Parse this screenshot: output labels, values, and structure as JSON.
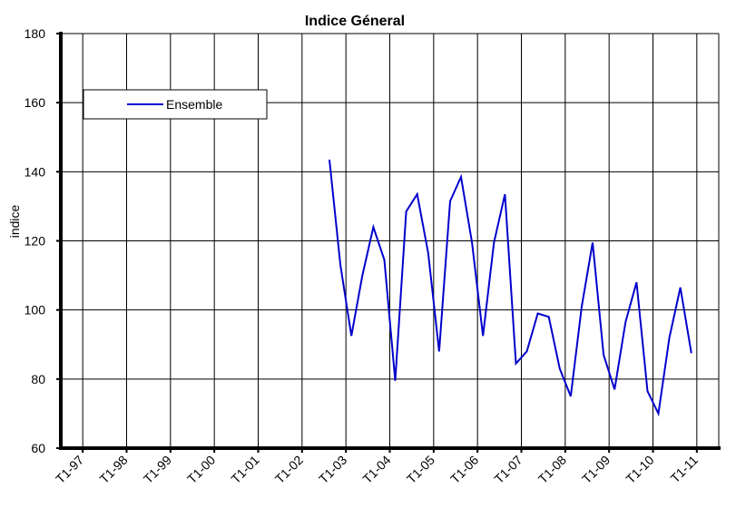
{
  "chart_data": {
    "type": "line",
    "title": "Indice Géneral",
    "xlabel": "",
    "ylabel": "indice",
    "ylim": [
      60,
      180
    ],
    "yticks": [
      60,
      80,
      100,
      120,
      140,
      160,
      180
    ],
    "xticks": [
      "T1-97",
      "T1-98",
      "T1-99",
      "T1-00",
      "T1-01",
      "T1-02",
      "T1-03",
      "T1-04",
      "T1-05",
      "T1-06",
      "T1-07",
      "T1-08",
      "T1-09",
      "T1-10",
      "T1-11"
    ],
    "grid": true,
    "legend_position": "top-left",
    "series": [
      {
        "name": "Ensemble",
        "color": "#0000cc",
        "x": [
          "T1-03",
          "T2-03",
          "T3-03",
          "T4-03",
          "T1-04",
          "T2-04",
          "T3-04",
          "T4-04",
          "T1-05",
          "T2-05",
          "T3-05",
          "T4-05",
          "T1-06",
          "T2-06",
          "T3-06",
          "T4-06",
          "T1-07",
          "T2-07",
          "T3-07",
          "T4-07",
          "T1-08",
          "T2-08",
          "T3-08",
          "T4-08",
          "T1-09",
          "T2-09",
          "T3-09",
          "T4-09",
          "T1-10",
          "T2-10",
          "T3-10",
          "T4-10",
          "T1-11",
          "T2-11"
        ],
        "values": [
          143.5,
          113,
          92.5,
          110,
          124,
          114.5,
          79.5,
          128.5,
          133.5,
          116.5,
          88,
          131.5,
          138.5,
          119.5,
          92.5,
          119.5,
          133.5,
          84.5,
          88,
          99,
          98,
          83,
          75,
          101,
          119.5,
          87,
          77,
          96.5,
          108,
          76.5,
          70,
          92,
          106.5,
          87.5
        ]
      }
    ]
  }
}
